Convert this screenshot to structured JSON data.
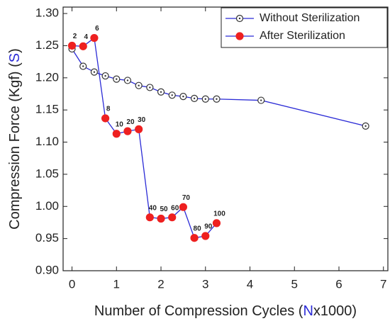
{
  "chart_data": {
    "type": "line",
    "x_label": [
      "Number of Compression Cycles (",
      "N",
      "x1000)"
    ],
    "y_label": [
      "Compression Force (Kgf) (",
      "S",
      ")"
    ],
    "xlim": [
      -0.2,
      7.1
    ],
    "xticks": [
      0,
      1,
      2,
      3,
      4,
      5,
      6,
      7
    ],
    "ylim": [
      0.9,
      1.31
    ],
    "yticks": [
      {
        "value": 0.9,
        "label": "0.90"
      },
      0.95,
      {
        "value": 1.0,
        "label": "1.00"
      },
      1.05,
      {
        "value": 1.1,
        "label": "1.10"
      },
      1.15,
      {
        "value": 1.2,
        "label": "1.20"
      },
      1.25,
      {
        "value": 1.3,
        "label": "1.30"
      }
    ],
    "legend": "upper right",
    "series": [
      {
        "name": "Without Sterilization",
        "color": "#2b2bd6",
        "marker_color": "#ffffff",
        "x": [
          0,
          0.25,
          0.5,
          0.75,
          1.0,
          1.25,
          1.5,
          1.75,
          2.0,
          2.25,
          2.5,
          2.75,
          3.0,
          3.25,
          4.25,
          6.6
        ],
        "values": [
          1.245,
          1.218,
          1.209,
          1.203,
          1.198,
          1.196,
          1.188,
          1.185,
          1.178,
          1.173,
          1.171,
          1.168,
          1.167,
          1.167,
          1.165,
          1.125
        ]
      },
      {
        "name": "After Sterilization",
        "color": "#2b2bd6",
        "marker_color": "#ee2020",
        "x": [
          0,
          0.25,
          0.5,
          0.75,
          1.0,
          1.25,
          1.5,
          1.75,
          2.0,
          2.25,
          2.5,
          2.75,
          3.0,
          3.25
        ],
        "values": [
          1.25,
          1.249,
          1.262,
          1.137,
          1.113,
          1.117,
          1.12,
          0.983,
          0.981,
          0.983,
          0.999,
          0.951,
          0.954,
          0.974
        ],
        "point_labels": [
          "2",
          "4",
          "6",
          "8",
          "10",
          "20",
          "30",
          "40",
          "50",
          "60",
          "70",
          "80",
          "90",
          "100"
        ]
      }
    ]
  }
}
